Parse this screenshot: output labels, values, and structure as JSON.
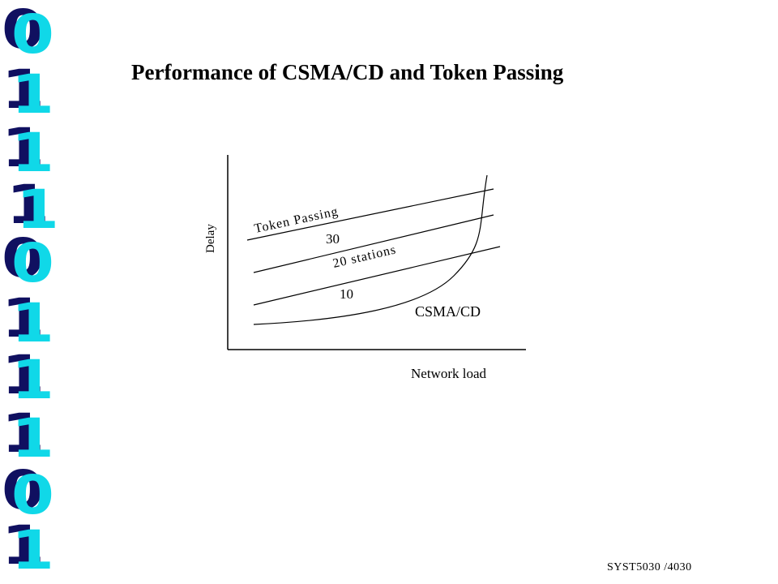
{
  "title": "Performance of CSMA/CD and Token Passing",
  "footer": "SYST5030 /4030",
  "decor_digits": [
    "0",
    "1",
    "1",
    "1",
    "0",
    "1",
    "1",
    "1",
    "0",
    "1"
  ],
  "colors": {
    "digit_face": "#10d8e8",
    "digit_shadow": "#101060"
  },
  "diagram": {
    "y_axis_label": "Delay",
    "x_axis_label": "Network load",
    "token_passing_label": "Token Passing",
    "station_labels": [
      "30",
      "20 stations",
      "10"
    ],
    "csma_label": "CSMA/CD"
  }
}
